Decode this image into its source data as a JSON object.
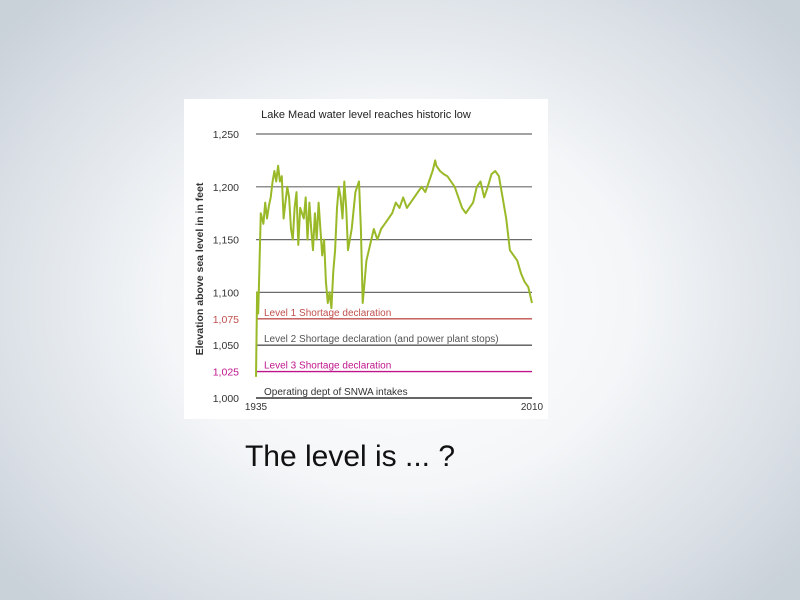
{
  "caption": "The level is ... ?",
  "chart_data": {
    "type": "line",
    "title": "Lake Mead water level reaches historic low",
    "ylabel": "Elevation above sea level in in feet",
    "xlabel": "",
    "ylim": [
      1000,
      1250
    ],
    "xlim": [
      1935,
      2010
    ],
    "x_tick_labels": [
      "1935",
      "2010"
    ],
    "y_tick_labels": [
      "1,250",
      "1,200",
      "1,150",
      "1,100",
      "1,075",
      "1,050",
      "1,025",
      "1,000"
    ],
    "y_ticks": [
      1250,
      1200,
      1150,
      1100,
      1075,
      1050,
      1025,
      1000
    ],
    "grid": true,
    "thresholds": [
      {
        "label": "Level 1 Shortage declaration",
        "value": 1075,
        "color": "#c0504d"
      },
      {
        "label": "Level 2 Shortage declaration (and power plant stops)",
        "value": 1050,
        "color": "#555555"
      },
      {
        "label": "Level 3 Shortage declaration",
        "value": 1025,
        "color": "#c0148c"
      },
      {
        "label": "Operating dept of SNWA intakes",
        "value": 1000,
        "color": "#333333"
      }
    ],
    "series": [
      {
        "color": "#9ab928",
        "x": [
          1935,
          1935.3,
          1935.6,
          1935.8,
          1936.3,
          1937,
          1937.5,
          1938,
          1938.5,
          1939,
          1939.5,
          1940,
          1940.5,
          1941,
          1941.5,
          1942,
          1942.5,
          1943,
          1943.5,
          1944,
          1944.5,
          1945,
          1945.5,
          1946,
          1946.5,
          1947,
          1947.5,
          1948,
          1948.5,
          1949,
          1949.5,
          1950,
          1950.5,
          1951,
          1951.5,
          1952,
          1952.5,
          1953,
          1953.5,
          1954,
          1954.5,
          1955,
          1955.5,
          1956,
          1956.5,
          1957,
          1957.5,
          1958,
          1958.5,
          1959,
          1959.5,
          1960,
          1961,
          1962,
          1963,
          1963.5,
          1964,
          1964.5,
          1965,
          1966,
          1967,
          1968,
          1969,
          1970,
          1971,
          1972,
          1973,
          1974,
          1975,
          1976,
          1977,
          1978,
          1979,
          1980,
          1981,
          1982,
          1983,
          1983.7,
          1984,
          1985,
          1986,
          1987,
          1988,
          1989,
          1990,
          1991,
          1992,
          1993,
          1994,
          1995,
          1996,
          1997,
          1998,
          1999,
          2000,
          2001,
          2002,
          2003,
          2004,
          2005,
          2006,
          2007,
          2008,
          2009,
          2010
        ],
        "y": [
          1020,
          1100,
          1080,
          1105,
          1175,
          1165,
          1185,
          1170,
          1182,
          1190,
          1205,
          1215,
          1205,
          1220,
          1205,
          1210,
          1170,
          1185,
          1200,
          1190,
          1160,
          1150,
          1180,
          1195,
          1145,
          1180,
          1175,
          1170,
          1190,
          1150,
          1185,
          1160,
          1140,
          1175,
          1150,
          1185,
          1160,
          1135,
          1150,
          1110,
          1090,
          1100,
          1085,
          1120,
          1140,
          1180,
          1200,
          1190,
          1170,
          1205,
          1180,
          1140,
          1160,
          1195,
          1205,
          1160,
          1090,
          1110,
          1130,
          1145,
          1160,
          1150,
          1160,
          1165,
          1170,
          1175,
          1185,
          1180,
          1190,
          1180,
          1185,
          1190,
          1195,
          1200,
          1195,
          1205,
          1215,
          1225,
          1220,
          1215,
          1212,
          1210,
          1205,
          1200,
          1190,
          1180,
          1175,
          1180,
          1185,
          1200,
          1205,
          1190,
          1200,
          1212,
          1215,
          1210,
          1190,
          1170,
          1140,
          1135,
          1130,
          1118,
          1110,
          1105,
          1090
        ]
      }
    ]
  }
}
